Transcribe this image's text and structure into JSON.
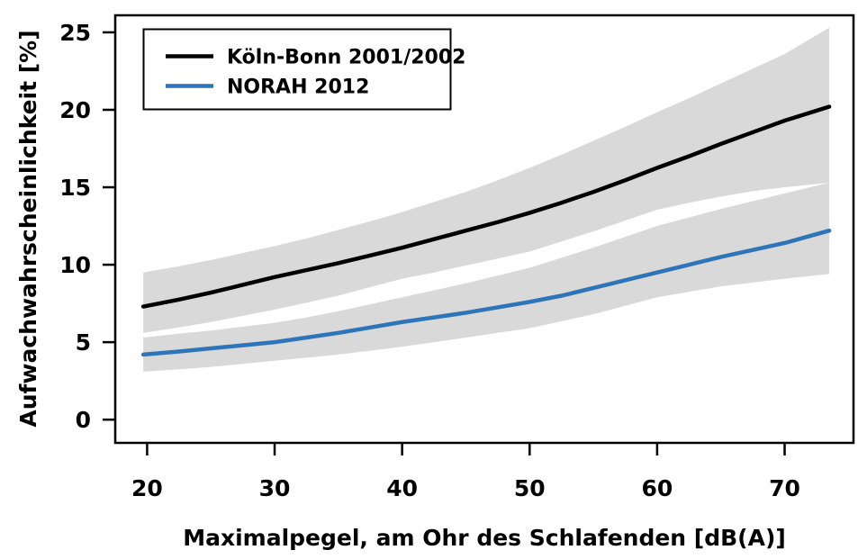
{
  "figure": {
    "background": "#ffffff",
    "plot_border_color": "#000000",
    "band_color": "#d9d9d9"
  },
  "chart_data": {
    "type": "line",
    "title": "",
    "xlabel": "Maximalpegel, am Ohr des Schlafenden [dB(A)]",
    "ylabel": "Aufwachwahrscheinlichkeit [%]",
    "xlim": [
      17.5,
      75.4
    ],
    "ylim": [
      -1.5,
      26.1
    ],
    "x_ticks": [
      20,
      30,
      40,
      50,
      60,
      70
    ],
    "y_ticks": [
      0,
      5,
      10,
      15,
      20,
      25
    ],
    "grid": false,
    "legend_position": "top-left",
    "x": [
      19.7,
      22.5,
      25,
      27.5,
      30,
      32.5,
      35,
      37.5,
      40,
      42.5,
      45,
      47.5,
      50,
      52.5,
      55,
      57.5,
      60,
      62.5,
      65,
      67.5,
      70,
      71.75,
      73.5
    ],
    "series": [
      {
        "name": "Köln-Bonn 2001/2002",
        "color": "#000000",
        "values": [
          7.3,
          7.75,
          8.2,
          8.7,
          9.2,
          9.65,
          10.1,
          10.6,
          11.1,
          11.65,
          12.2,
          12.75,
          13.35,
          14.0,
          14.7,
          15.45,
          16.25,
          17.0,
          17.8,
          18.55,
          19.3,
          19.75,
          20.2
        ],
        "upper": [
          9.5,
          9.9,
          10.3,
          10.75,
          11.2,
          11.7,
          12.25,
          12.8,
          13.4,
          14.05,
          14.7,
          15.45,
          16.25,
          17.1,
          18.0,
          18.9,
          19.85,
          20.75,
          21.7,
          22.65,
          23.6,
          24.45,
          25.3
        ],
        "lower": [
          5.6,
          5.95,
          6.3,
          6.7,
          7.1,
          7.55,
          8.0,
          8.55,
          9.1,
          9.5,
          9.95,
          10.4,
          10.85,
          11.5,
          12.15,
          12.85,
          13.55,
          14.0,
          14.4,
          14.75,
          15.0,
          15.15,
          15.3
        ]
      },
      {
        "name": "NORAH 2012",
        "color": "#2e74b8",
        "values": [
          4.2,
          4.4,
          4.6,
          4.8,
          5.0,
          5.3,
          5.6,
          5.95,
          6.3,
          6.6,
          6.9,
          7.25,
          7.6,
          8.0,
          8.5,
          9.0,
          9.5,
          10.0,
          10.5,
          10.95,
          11.4,
          11.8,
          12.2
        ],
        "upper": [
          5.3,
          5.55,
          5.75,
          6.0,
          6.25,
          6.6,
          7.0,
          7.45,
          7.9,
          8.35,
          8.8,
          9.3,
          9.8,
          10.45,
          11.1,
          11.8,
          12.5,
          13.05,
          13.6,
          14.1,
          14.6,
          14.95,
          15.3
        ],
        "lower": [
          3.1,
          3.25,
          3.4,
          3.6,
          3.8,
          4.0,
          4.2,
          4.45,
          4.7,
          5.0,
          5.3,
          5.6,
          5.9,
          6.35,
          6.8,
          7.35,
          7.9,
          8.25,
          8.6,
          8.85,
          9.1,
          9.25,
          9.4
        ]
      }
    ]
  }
}
